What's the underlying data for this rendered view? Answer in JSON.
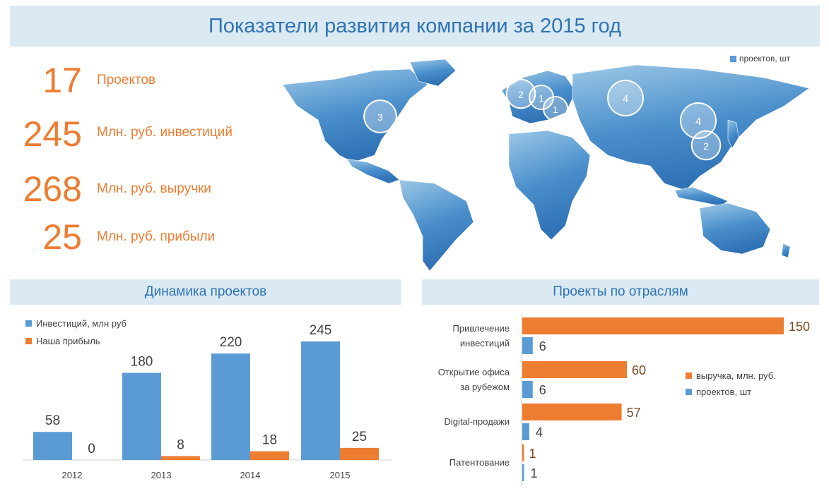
{
  "title": "Показатели развития компании за 2015 год",
  "kpis": [
    {
      "value": "17",
      "label": "Проектов"
    },
    {
      "value": "245",
      "label": "Млн. руб. инвестиций"
    },
    {
      "value": "268",
      "label": "Млн. руб. выручки"
    },
    {
      "value": "25",
      "label": "Млн. руб. прибыли"
    }
  ],
  "map": {
    "legend_label": "проектов, шт",
    "bubbles": [
      {
        "region": "North America",
        "value": 3
      },
      {
        "region": "Western Europe",
        "value": 2
      },
      {
        "region": "Northern Europe",
        "value": 1
      },
      {
        "region": "Central Europe",
        "value": 1
      },
      {
        "region": "Russia",
        "value": 4
      },
      {
        "region": "China",
        "value": 4
      },
      {
        "region": "East Asia",
        "value": 2
      }
    ]
  },
  "colors": {
    "blue": "#5b9bd5",
    "orange": "#ed7d31",
    "title_blue": "#2e73b3",
    "banner_bg": "#dbe9f3",
    "map_blue": "#4a8fcc"
  },
  "chart_data": [
    {
      "type": "bar",
      "title": "Динамика проектов",
      "categories": [
        "2012",
        "2013",
        "2014",
        "2015"
      ],
      "series": [
        {
          "name": "Инвестиций, млн руб",
          "values": [
            58,
            180,
            220,
            245
          ],
          "color": "#5b9bd5"
        },
        {
          "name": "Наша прибыль",
          "values": [
            0,
            8,
            18,
            25
          ],
          "color": "#ed7d31"
        }
      ],
      "legend": "top-left",
      "grid": false
    },
    {
      "type": "bar",
      "orientation": "horizontal",
      "title": "Проекты по отраслям",
      "categories": [
        "Привлечение инвестиций",
        "Открытие офиса за рубежом",
        "Digital-продажи",
        "Патентование"
      ],
      "category_lines": [
        [
          "Привлечение",
          "инвестиций"
        ],
        [
          "Открытие офиса",
          "за рубежом"
        ],
        [
          "Digital-продажи"
        ],
        [
          "Патентование"
        ]
      ],
      "series": [
        {
          "name": "выручка, млн. руб.",
          "values": [
            150,
            60,
            57,
            1
          ],
          "color": "#ed7d31"
        },
        {
          "name": "проектов, шт",
          "values": [
            6,
            6,
            4,
            1
          ],
          "color": "#5b9bd5"
        }
      ],
      "legend": "right",
      "grid": false
    }
  ]
}
